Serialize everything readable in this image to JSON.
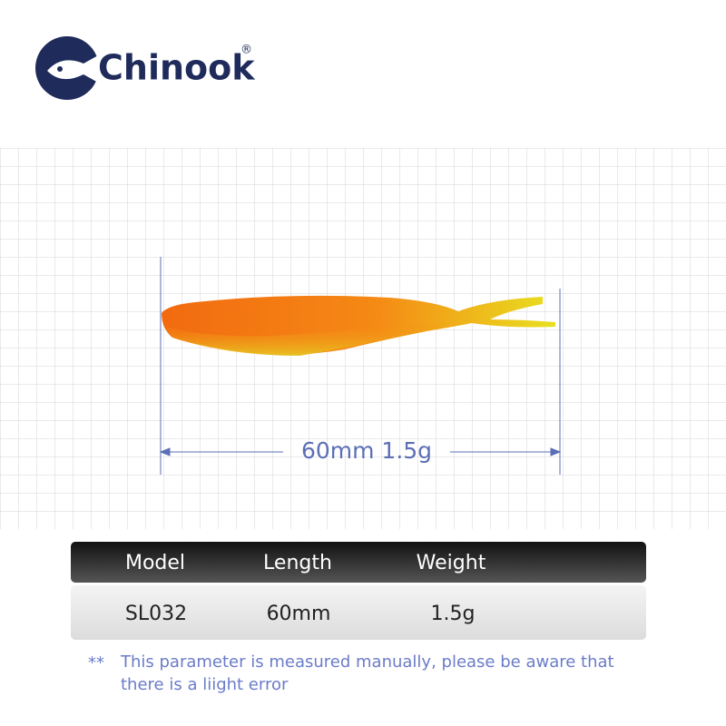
{
  "logo": {
    "brand": "Chinook",
    "registered": "®"
  },
  "dimension": {
    "label": "60mm 1.5g"
  },
  "table": {
    "headers": [
      "Model",
      "Length",
      "Weight"
    ],
    "rows": [
      [
        "SL032",
        "60mm",
        "1.5g"
      ]
    ]
  },
  "note": {
    "marker": "**",
    "lines": [
      "This parameter is measured manually, please be aware that",
      "there is a liight error"
    ]
  }
}
